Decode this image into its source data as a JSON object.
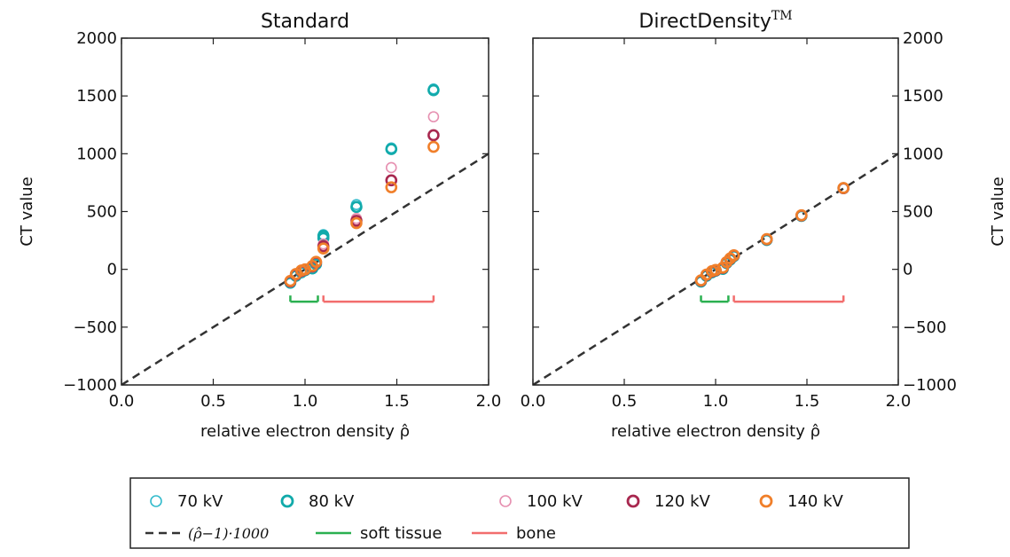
{
  "chart_data": [
    {
      "type": "scatter",
      "title": "Standard",
      "xlabel": "relative electron density ρ̂",
      "ylabel": "CT value",
      "ylabel_side": "left",
      "xlim": [
        0.0,
        2.0
      ],
      "ylim": [
        -1000,
        2000
      ],
      "xticks": [
        "0.0",
        "0.5",
        "1.0",
        "1.5",
        "2.0"
      ],
      "yticks": [
        "−1000",
        "−500",
        "0",
        "500",
        "1000",
        "1500",
        "2000"
      ],
      "grid": false,
      "series": [
        {
          "name": "70 kV",
          "color": "#33bbcc",
          "x": [
            0.92,
            0.95,
            0.98,
            1.0,
            1.04,
            1.06,
            1.1,
            1.1,
            1.28,
            1.47,
            1.7
          ],
          "y": [
            -120,
            -60,
            -30,
            -10,
            5,
            40,
            280,
            300,
            560,
            1050,
            1560
          ]
        },
        {
          "name": "80 kV",
          "color": "#11aaaa",
          "x": [
            0.92,
            0.95,
            0.98,
            1.0,
            1.04,
            1.06,
            1.1,
            1.1,
            1.28,
            1.47,
            1.7
          ],
          "y": [
            -115,
            -55,
            -25,
            -8,
            8,
            45,
            270,
            290,
            540,
            1040,
            1550
          ]
        },
        {
          "name": "100 kV",
          "color": "#e68fb0",
          "x": [
            0.92,
            0.95,
            0.98,
            1.0,
            1.04,
            1.06,
            1.1,
            1.28,
            1.47,
            1.7
          ],
          "y": [
            -110,
            -50,
            -20,
            -5,
            20,
            55,
            220,
            440,
            880,
            1320
          ]
        },
        {
          "name": "120 kV",
          "color": "#a8284f",
          "x": [
            0.92,
            0.95,
            0.98,
            1.0,
            1.04,
            1.06,
            1.1,
            1.28,
            1.47,
            1.7
          ],
          "y": [
            -105,
            -45,
            -15,
            -2,
            25,
            60,
            200,
            420,
            770,
            1160
          ]
        },
        {
          "name": "140 kV",
          "color": "#f07f2a",
          "x": [
            0.92,
            0.95,
            0.98,
            1.0,
            1.04,
            1.06,
            1.1,
            1.28,
            1.47,
            1.7
          ],
          "y": [
            -100,
            -40,
            -10,
            0,
            30,
            65,
            180,
            400,
            710,
            1060
          ]
        }
      ],
      "reference_line": {
        "name": "(ρ̂−1)·1000",
        "x": [
          0.0,
          2.0
        ],
        "y": [
          -1000,
          1000
        ],
        "color": "#333333"
      },
      "ranges": [
        {
          "name": "soft tissue",
          "color": "#2ab050",
          "x": [
            0.92,
            1.07
          ],
          "y": -280
        },
        {
          "name": "bone",
          "color": "#f26d6d",
          "x": [
            1.1,
            1.7
          ],
          "y": -280
        }
      ]
    },
    {
      "type": "scatter",
      "title": "DirectDensity",
      "title_superscript": "TM",
      "xlabel": "relative electron density ρ̂",
      "ylabel": "CT value",
      "ylabel_side": "right",
      "xlim": [
        0.0,
        2.0
      ],
      "ylim": [
        -1000,
        2000
      ],
      "xticks": [
        "0.0",
        "0.5",
        "1.0",
        "1.5",
        "2.0"
      ],
      "yticks": [
        "−1000",
        "−500",
        "0",
        "500",
        "1000",
        "1500",
        "2000"
      ],
      "grid": false,
      "series": [
        {
          "name": "70 kV",
          "color": "#33bbcc",
          "x": [
            0.92,
            0.95,
            0.98,
            1.0,
            1.04,
            1.06,
            1.08,
            1.1,
            1.28,
            1.47,
            1.7
          ],
          "y": [
            -110,
            -60,
            -30,
            -15,
            0,
            50,
            80,
            110,
            250,
            460,
            700
          ]
        },
        {
          "name": "80 kV",
          "color": "#11aaaa",
          "x": [
            0.92,
            0.95,
            0.98,
            1.0,
            1.04,
            1.06,
            1.08,
            1.1,
            1.28,
            1.47,
            1.7
          ],
          "y": [
            -105,
            -55,
            -25,
            -12,
            5,
            55,
            85,
            115,
            255,
            462,
            702
          ]
        },
        {
          "name": "100 kV",
          "color": "#e68fb0",
          "x": [
            0.92,
            0.95,
            0.98,
            1.0,
            1.04,
            1.06,
            1.08,
            1.1,
            1.28,
            1.47,
            1.7
          ],
          "y": [
            -100,
            -50,
            -20,
            -10,
            10,
            58,
            90,
            118,
            258,
            465,
            700
          ]
        },
        {
          "name": "120 kV",
          "color": "#a8284f",
          "x": [
            0.92,
            0.95,
            0.98,
            1.0,
            1.04,
            1.06,
            1.08,
            1.1,
            1.28,
            1.47,
            1.7
          ],
          "y": [
            -98,
            -48,
            -18,
            -8,
            12,
            60,
            92,
            120,
            260,
            466,
            702
          ]
        },
        {
          "name": "140 kV",
          "color": "#f07f2a",
          "x": [
            0.92,
            0.95,
            0.98,
            1.0,
            1.04,
            1.06,
            1.08,
            1.1,
            1.28,
            1.47,
            1.7
          ],
          "y": [
            -95,
            -45,
            -15,
            -5,
            15,
            62,
            95,
            122,
            262,
            468,
            704
          ]
        }
      ],
      "reference_line": {
        "name": "(ρ̂−1)·1000",
        "x": [
          0.0,
          2.0
        ],
        "y": [
          -1000,
          1000
        ],
        "color": "#333333"
      },
      "ranges": [
        {
          "name": "soft tissue",
          "color": "#2ab050",
          "x": [
            0.92,
            1.07
          ],
          "y": -280
        },
        {
          "name": "bone",
          "color": "#f26d6d",
          "x": [
            1.1,
            1.7
          ],
          "y": -280
        }
      ]
    }
  ],
  "legend": {
    "placement": "bottom-center",
    "entries": [
      {
        "label": "70 kV",
        "kind": "marker",
        "color": "#33bbcc",
        "stroke": "thin"
      },
      {
        "label": "80 kV",
        "kind": "marker",
        "color": "#11aaaa",
        "stroke": "thick"
      },
      {
        "label": "100 kV",
        "kind": "marker",
        "color": "#e68fb0",
        "stroke": "thin"
      },
      {
        "label": "120 kV",
        "kind": "marker",
        "color": "#a8284f",
        "stroke": "thick"
      },
      {
        "label": "140 kV",
        "kind": "marker",
        "color": "#f07f2a",
        "stroke": "thick"
      },
      {
        "label": "(ρ̂−1)·1000",
        "kind": "dashed",
        "color": "#333333"
      },
      {
        "label": "soft tissue",
        "kind": "line",
        "color": "#2ab050"
      },
      {
        "label": "bone",
        "kind": "line",
        "color": "#f26d6d"
      }
    ]
  }
}
